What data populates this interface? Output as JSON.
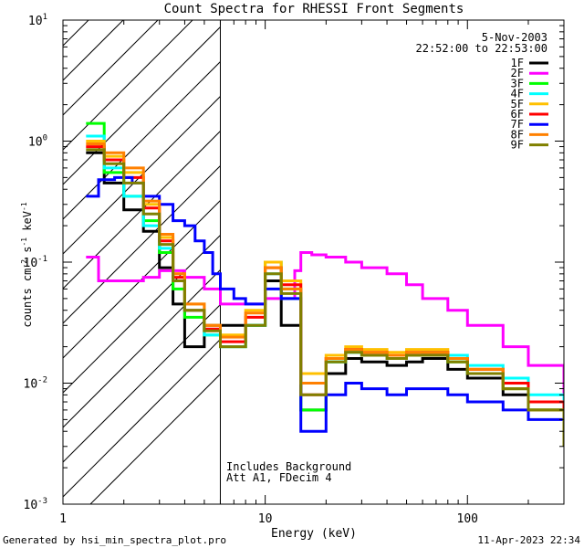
{
  "chart_data": {
    "type": "line",
    "title": "Count Spectra for RHESSI Front Segments",
    "xlabel": "Energy (keV)",
    "ylabel": "counts cm",
    "ylabel_sup1": "-2",
    "ylabel_mid": " s",
    "ylabel_sup2": "-1",
    "ylabel_unit": " keV",
    "ylabel_sup3": "-1",
    "xscale": "log",
    "yscale": "log",
    "xlim": [
      1,
      300
    ],
    "ylim": [
      0.001,
      10
    ],
    "x_ticks": [
      {
        "label": "1",
        "value": 1
      },
      {
        "label": "10",
        "value": 10
      },
      {
        "label": "100",
        "value": 100
      }
    ],
    "y_ticks": [
      {
        "base": "10",
        "exp": "-3",
        "value": 0.001
      },
      {
        "base": "10",
        "exp": "-2",
        "value": 0.01
      },
      {
        "base": "10",
        "exp": "-1",
        "value": 0.1
      },
      {
        "base": "10",
        "exp": "0",
        "value": 1
      },
      {
        "base": "10",
        "exp": "1",
        "value": 10
      }
    ],
    "hatch_region": [
      1,
      6
    ],
    "legend": {
      "date": "5-Nov-2003",
      "time_range": "22:52:00 to 22:53:00",
      "placement": "top-right"
    },
    "annotations": [
      "Includes Background",
      "Att A1, FDecim 4"
    ],
    "series": [
      {
        "name": "1F",
        "color": "#000000",
        "energies": [
          1.3,
          1.6,
          2.0,
          2.5,
          3.0,
          3.5,
          4.0,
          5.0,
          8.0,
          10.0,
          12,
          15,
          20,
          25,
          30,
          40,
          50,
          60,
          80,
          100,
          150,
          200,
          300
        ],
        "values": [
          0.8,
          0.45,
          0.27,
          0.18,
          0.09,
          0.045,
          0.02,
          0.03,
          0.03,
          0.07,
          0.03,
          0.006,
          0.012,
          0.016,
          0.015,
          0.014,
          0.015,
          0.016,
          0.013,
          0.011,
          0.008,
          0.006,
          0.003
        ]
      },
      {
        "name": "2F",
        "color": "#ff00ff",
        "energies": [
          1.3,
          1.5,
          1.8,
          2.5,
          3.0,
          4.0,
          5.0,
          6.0,
          7.0,
          8.0,
          10.0,
          12,
          14,
          15,
          17,
          20,
          25,
          30,
          40,
          50,
          60,
          80,
          100,
          150,
          200,
          300
        ],
        "values": [
          0.11,
          0.07,
          0.07,
          0.075,
          0.085,
          0.075,
          0.06,
          0.045,
          0.045,
          0.045,
          0.05,
          0.05,
          0.085,
          0.12,
          0.115,
          0.11,
          0.1,
          0.09,
          0.08,
          0.065,
          0.05,
          0.04,
          0.03,
          0.02,
          0.014,
          0.006
        ]
      },
      {
        "name": "3F",
        "color": "#00ff00",
        "energies": [
          1.3,
          1.6,
          2.0,
          2.5,
          3.0,
          3.5,
          4.0,
          5.0,
          6.0,
          8.0,
          10.0,
          12,
          15,
          20,
          25,
          30,
          40,
          50,
          60,
          80,
          100,
          150,
          200,
          300
        ],
        "values": [
          1.4,
          0.55,
          0.35,
          0.22,
          0.12,
          0.06,
          0.035,
          0.025,
          0.02,
          0.03,
          0.1,
          0.06,
          0.006,
          0.015,
          0.018,
          0.017,
          0.016,
          0.017,
          0.018,
          0.015,
          0.012,
          0.009,
          0.006,
          0.004
        ]
      },
      {
        "name": "4F",
        "color": "#00ffff",
        "energies": [
          1.3,
          1.6,
          2.0,
          2.5,
          3.0,
          3.5,
          4.0,
          5.0,
          6.0,
          8.0,
          10.0,
          12,
          15,
          20,
          25,
          30,
          40,
          50,
          60,
          80,
          100,
          150,
          200,
          300
        ],
        "values": [
          1.1,
          0.6,
          0.35,
          0.2,
          0.13,
          0.07,
          0.04,
          0.025,
          0.02,
          0.03,
          0.08,
          0.05,
          0.01,
          0.015,
          0.018,
          0.017,
          0.016,
          0.017,
          0.018,
          0.017,
          0.014,
          0.011,
          0.008,
          0.005
        ]
      },
      {
        "name": "5F",
        "color": "#ffc000",
        "energies": [
          1.3,
          1.6,
          2.0,
          2.5,
          3.0,
          3.5,
          4.0,
          5.0,
          6.0,
          8.0,
          10.0,
          12,
          15,
          20,
          25,
          30,
          40,
          50,
          60,
          80,
          100,
          150,
          200,
          300
        ],
        "values": [
          1.0,
          0.75,
          0.55,
          0.3,
          0.16,
          0.08,
          0.045,
          0.03,
          0.025,
          0.04,
          0.1,
          0.07,
          0.012,
          0.017,
          0.02,
          0.019,
          0.018,
          0.019,
          0.019,
          0.016,
          0.013,
          0.01,
          0.007,
          0.004
        ]
      },
      {
        "name": "6F",
        "color": "#ff0000",
        "energies": [
          1.3,
          1.6,
          2.0,
          2.5,
          3.0,
          3.5,
          4.0,
          5.0,
          6.0,
          8.0,
          10.0,
          12,
          15,
          20,
          25,
          30,
          40,
          50,
          60,
          80,
          100,
          150,
          200,
          300
        ],
        "values": [
          0.9,
          0.7,
          0.5,
          0.28,
          0.15,
          0.075,
          0.04,
          0.028,
          0.022,
          0.035,
          0.09,
          0.065,
          0.008,
          0.016,
          0.019,
          0.018,
          0.017,
          0.018,
          0.018,
          0.016,
          0.013,
          0.01,
          0.007,
          0.004
        ]
      },
      {
        "name": "7F",
        "color": "#0000ff",
        "energies": [
          1.3,
          1.5,
          1.8,
          2.2,
          2.5,
          3.0,
          3.5,
          4.0,
          4.5,
          5.0,
          5.5,
          6.0,
          7.0,
          8.0,
          10.0,
          12,
          15,
          20,
          25,
          30,
          40,
          50,
          60,
          80,
          100,
          150,
          200,
          300
        ],
        "values": [
          0.35,
          0.48,
          0.5,
          0.45,
          0.35,
          0.3,
          0.22,
          0.2,
          0.15,
          0.12,
          0.08,
          0.06,
          0.05,
          0.045,
          0.06,
          0.05,
          0.004,
          0.008,
          0.01,
          0.009,
          0.008,
          0.009,
          0.009,
          0.008,
          0.007,
          0.006,
          0.005,
          0.003
        ]
      },
      {
        "name": "8F",
        "color": "#ff8000",
        "energies": [
          1.3,
          1.6,
          2.0,
          2.5,
          3.0,
          3.5,
          4.0,
          5.0,
          6.0,
          8.0,
          10.0,
          12,
          15,
          20,
          25,
          30,
          40,
          50,
          60,
          80,
          100,
          150,
          200,
          300
        ],
        "values": [
          0.95,
          0.8,
          0.6,
          0.32,
          0.17,
          0.08,
          0.045,
          0.03,
          0.024,
          0.038,
          0.09,
          0.06,
          0.01,
          0.016,
          0.019,
          0.018,
          0.017,
          0.018,
          0.018,
          0.016,
          0.013,
          0.009,
          0.006,
          0.004
        ]
      },
      {
        "name": "9F",
        "color": "#808000",
        "energies": [
          1.3,
          1.6,
          2.0,
          2.5,
          3.0,
          3.5,
          4.0,
          5.0,
          6.0,
          8.0,
          10.0,
          12,
          15,
          20,
          25,
          30,
          40,
          50,
          60,
          80,
          100,
          150,
          200,
          300
        ],
        "values": [
          0.85,
          0.65,
          0.45,
          0.25,
          0.14,
          0.07,
          0.04,
          0.027,
          0.02,
          0.03,
          0.08,
          0.055,
          0.008,
          0.015,
          0.018,
          0.017,
          0.016,
          0.017,
          0.017,
          0.015,
          0.012,
          0.009,
          0.006,
          0.003
        ]
      }
    ]
  },
  "footer": {
    "left": "Generated by hsi_min_spectra_plot.pro",
    "right": "11-Apr-2023 22:34"
  }
}
